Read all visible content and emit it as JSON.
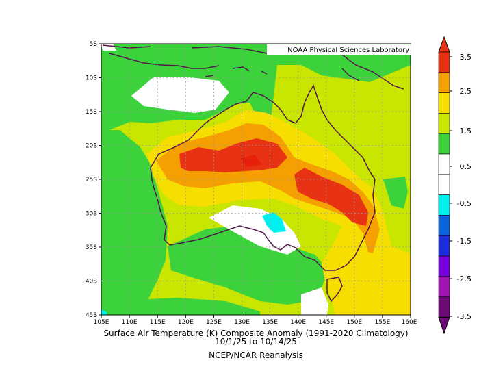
{
  "credit": "NOAA Physical Sciences Laboratory",
  "captions": {
    "line1": "Surface Air Temperature (K) Composite Anomaly (1991-2020 Climatology)",
    "line2": "10/1/25  to 10/14/25",
    "line3": "NCEP/NCAR Reanalysis"
  },
  "lat_ticks": [
    "5S",
    "10S",
    "15S",
    "20S",
    "25S",
    "30S",
    "35S",
    "40S",
    "45S"
  ],
  "lon_ticks": [
    "105E",
    "110E",
    "115E",
    "120E",
    "125E",
    "130E",
    "135E",
    "140E",
    "145E",
    "150E",
    "155E",
    "160E"
  ],
  "colorbar": {
    "labels": [
      "3.5",
      "2.5",
      "1.5",
      "0.5",
      "-0.5",
      "-1.5",
      "-2.5",
      "-3.5"
    ],
    "colors": [
      "#e83214",
      "#f5a000",
      "#f5de00",
      "#c8e600",
      "#3cd23c",
      "#ffffff",
      "#ffffff",
      "#00f0f0",
      "#0a64dc",
      "#1e2ddc",
      "#7800dc",
      "#a014b4",
      "#6e0a78"
    ]
  },
  "fill_colors": {
    "anom_3": "#e83214",
    "anom_2": "#f5a000",
    "anom_1_5": "#f5de00",
    "anom_1": "#c8e600",
    "anom_0_5": "#3cd23c",
    "anom_neg": "#00f0f0",
    "coast": "#50184a"
  }
}
